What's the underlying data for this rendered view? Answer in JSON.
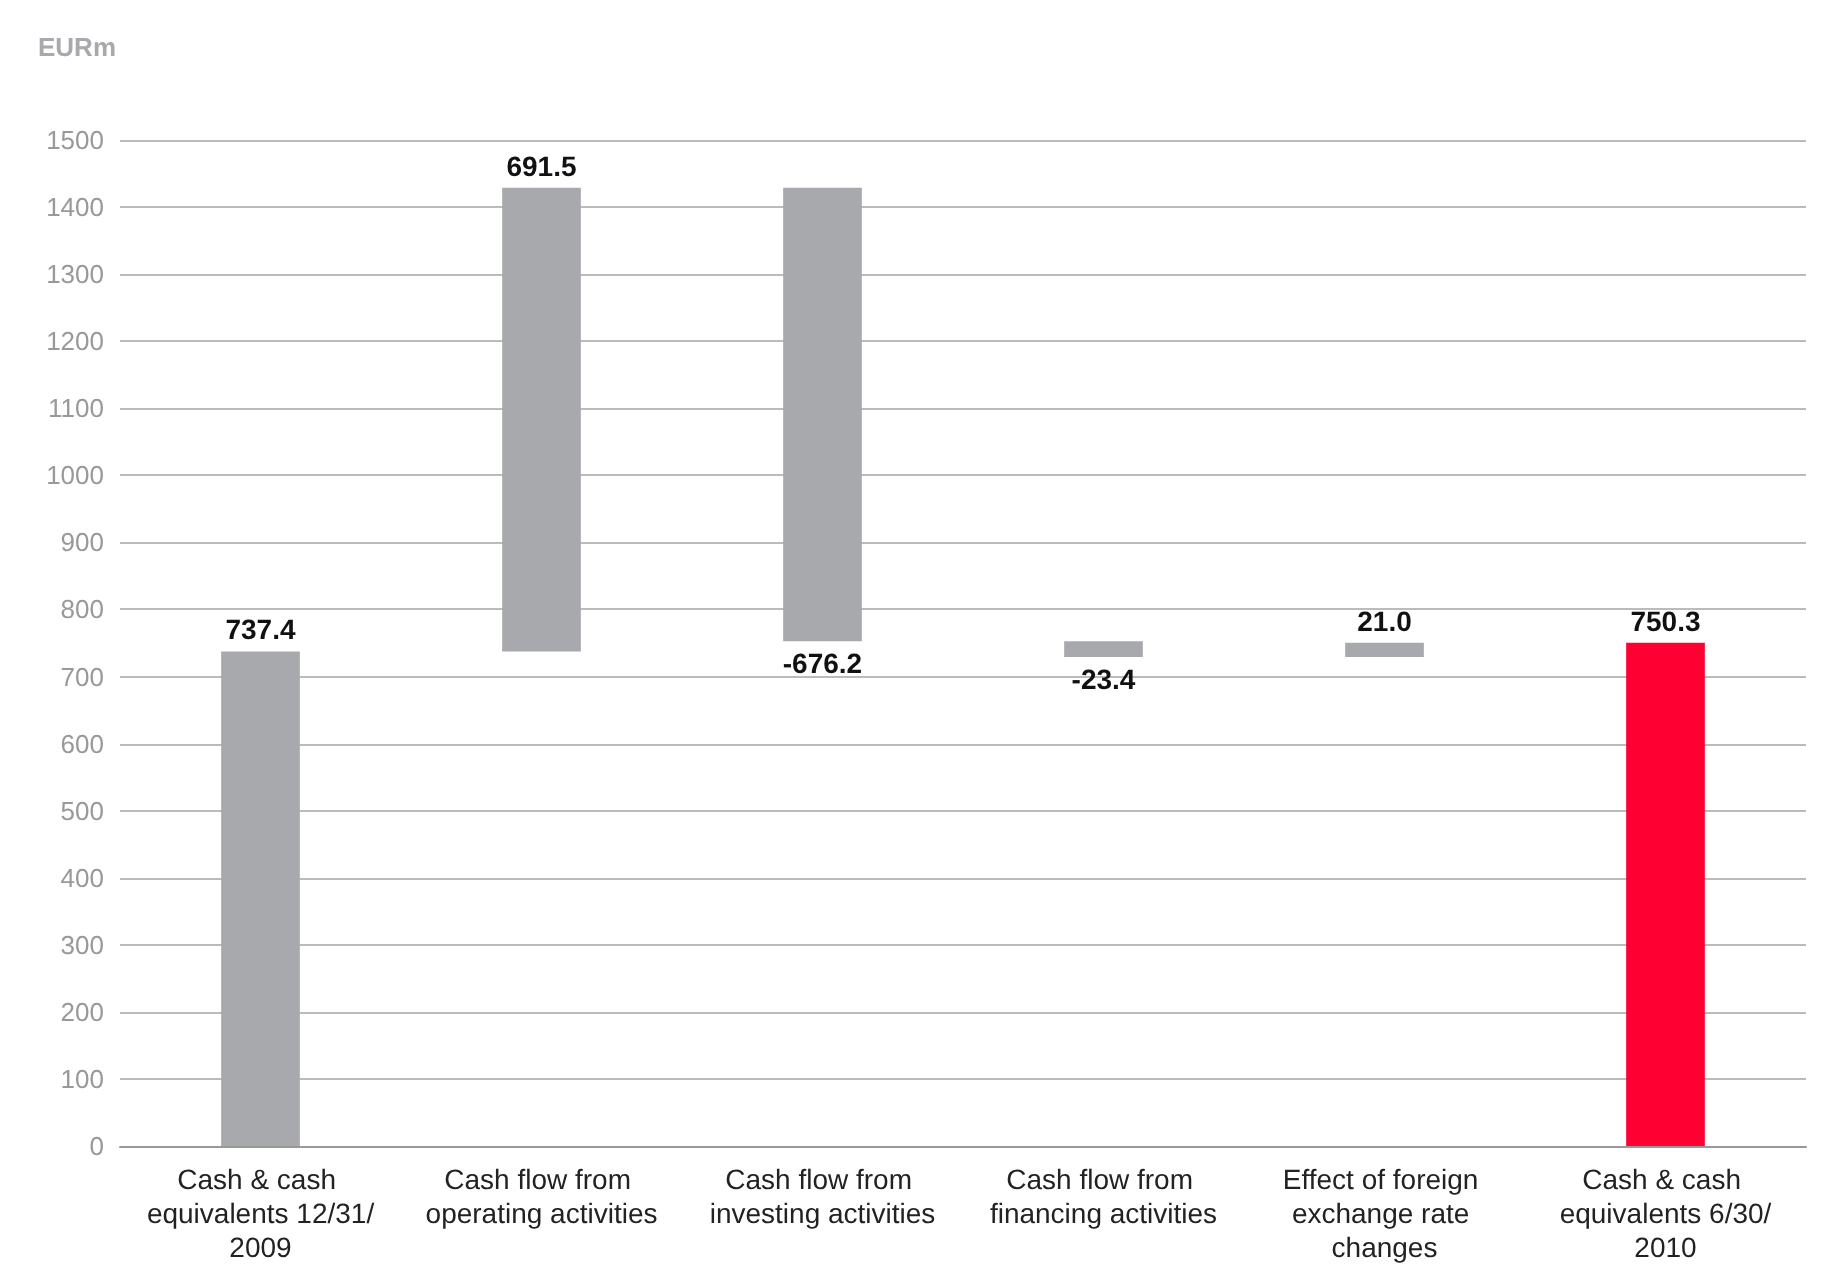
{
  "chart_data": {
    "type": "bar",
    "ylabel": "EURm",
    "categories": [
      "Cash & cash equivalents 12/31/2009",
      "Cash flow from operating activities",
      "Cash flow from investing activities",
      "Cash flow from financing activities",
      "Effect of foreign exchange rate changes",
      "Cash & cash equivalents 6/30/2010"
    ],
    "values": [
      737.4,
      691.5,
      -676.2,
      -23.4,
      21.0,
      750.3
    ],
    "base": [
      0,
      737.4,
      1428.9,
      752.7,
      729.3,
      0
    ],
    "colors": [
      "#a7a9ac",
      "#a7a9ac",
      "#a7a9ac",
      "#a7a9ac",
      "#a7a9ac",
      "#ff0033"
    ],
    "value_labels": [
      "737.4",
      "691.5",
      "-676.2",
      "-23.4",
      "21.0",
      "750.3"
    ],
    "ylim": [
      0,
      1500
    ],
    "yticks": [
      0,
      100,
      200,
      300,
      400,
      500,
      600,
      700,
      800,
      900,
      1000,
      1100,
      1200,
      1300,
      1400,
      1500
    ],
    "grid": "y"
  }
}
